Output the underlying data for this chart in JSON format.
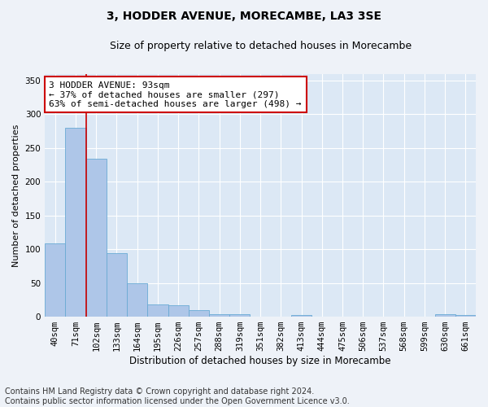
{
  "title": "3, HODDER AVENUE, MORECAMBE, LA3 3SE",
  "subtitle": "Size of property relative to detached houses in Morecambe",
  "xlabel": "Distribution of detached houses by size in Morecambe",
  "ylabel": "Number of detached properties",
  "categories": [
    "40sqm",
    "71sqm",
    "102sqm",
    "133sqm",
    "164sqm",
    "195sqm",
    "226sqm",
    "257sqm",
    "288sqm",
    "319sqm",
    "351sqm",
    "382sqm",
    "413sqm",
    "444sqm",
    "475sqm",
    "506sqm",
    "537sqm",
    "568sqm",
    "599sqm",
    "630sqm",
    "661sqm"
  ],
  "values": [
    109,
    280,
    234,
    94,
    49,
    18,
    17,
    10,
    4,
    4,
    0,
    0,
    3,
    0,
    0,
    0,
    0,
    0,
    0,
    4,
    3
  ],
  "bar_color": "#aec6e8",
  "bar_edge_color": "#6aaad4",
  "vline_x_index": 1.5,
  "vline_color": "#cc0000",
  "annotation_line1": "3 HODDER AVENUE: 93sqm",
  "annotation_line2": "← 37% of detached houses are smaller (297)",
  "annotation_line3": "63% of semi-detached houses are larger (498) →",
  "annotation_box_color": "#ffffff",
  "annotation_box_edgecolor": "#cc0000",
  "annotation_fontsize": 8,
  "ylim": [
    0,
    360
  ],
  "yticks": [
    0,
    50,
    100,
    150,
    200,
    250,
    300,
    350
  ],
  "footer": "Contains HM Land Registry data © Crown copyright and database right 2024.\nContains public sector information licensed under the Open Government Licence v3.0.",
  "fig_background_color": "#eef2f8",
  "plot_background_color": "#dce8f5",
  "grid_color": "#ffffff",
  "title_fontsize": 10,
  "subtitle_fontsize": 9,
  "xlabel_fontsize": 8.5,
  "ylabel_fontsize": 8,
  "footer_fontsize": 7,
  "tick_fontsize": 7.5
}
